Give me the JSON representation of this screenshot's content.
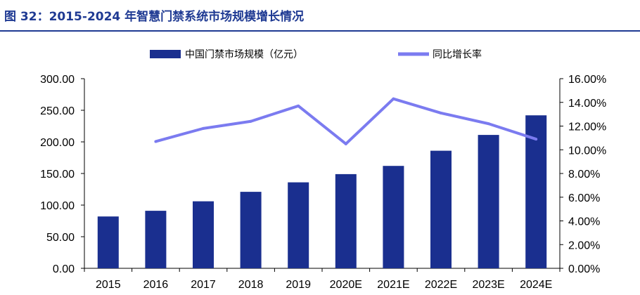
{
  "figure": {
    "title": "图 32：2015-2024 年智慧门禁系统市场规模增长情况"
  },
  "colors": {
    "title": "#1f3a93",
    "bar": "#1a2f8f",
    "line": "#7b7bf0"
  },
  "chart_data": {
    "type": "bar",
    "categories": [
      "2015",
      "2016",
      "2017",
      "2018",
      "2019",
      "2020E",
      "2021E",
      "2022E",
      "2023E",
      "2024E"
    ],
    "series": [
      {
        "name": "中国门禁市场规模（亿元）",
        "type": "bar",
        "axis": "left",
        "values": [
          82,
          91,
          106,
          121,
          136,
          149,
          162,
          186,
          211,
          242
        ]
      },
      {
        "name": "同比增长率",
        "type": "line",
        "axis": "right",
        "values": [
          null,
          10.7,
          11.8,
          12.4,
          13.7,
          10.5,
          14.3,
          13.1,
          12.2,
          10.9
        ]
      }
    ],
    "y_left": {
      "lim": [
        0,
        300
      ],
      "ticks": [
        "0.00",
        "50.00",
        "100.00",
        "150.00",
        "200.00",
        "250.00",
        "300.00"
      ]
    },
    "y_right": {
      "lim": [
        0,
        16
      ],
      "ticks": [
        "0.00%",
        "2.00%",
        "4.00%",
        "6.00%",
        "8.00%",
        "10.00%",
        "12.00%",
        "14.00%",
        "16.00%"
      ]
    },
    "grid": false,
    "legend": "top"
  }
}
